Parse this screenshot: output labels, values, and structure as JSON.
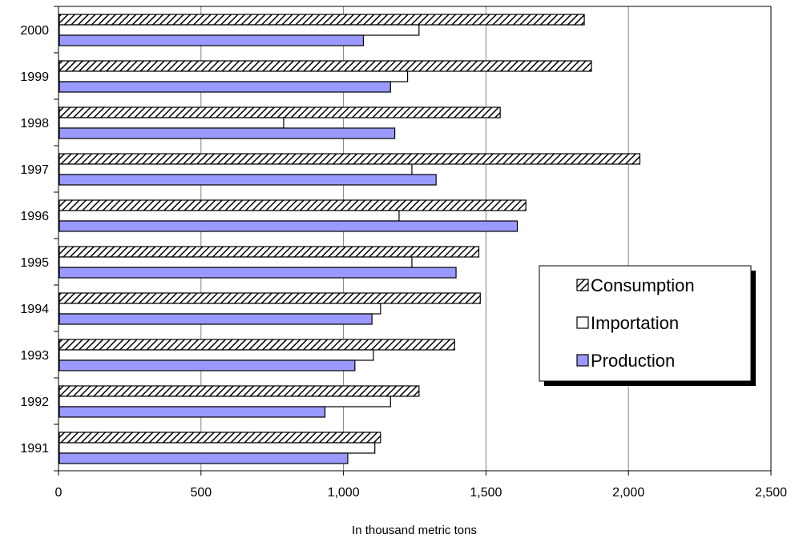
{
  "chart_data": {
    "type": "bar",
    "orientation": "horizontal",
    "title": "",
    "xlabel": "In thousand metric tons",
    "ylabel": "",
    "xlim": [
      0,
      2500
    ],
    "xticks": [
      0,
      500,
      1000,
      1500,
      2000,
      2500
    ],
    "xtick_labels": [
      "0",
      "500",
      "1,000",
      "1,500",
      "2,000",
      "2,500"
    ],
    "grid": "vertical",
    "legend_position": "right",
    "categories": [
      "2000",
      "1999",
      "1998",
      "1997",
      "1996",
      "1995",
      "1994",
      "1993",
      "1992",
      "1991"
    ],
    "series": [
      {
        "name": "Consumption",
        "fill": "hatch",
        "color": "#000000",
        "values": [
          1845,
          1870,
          1550,
          2040,
          1640,
          1475,
          1480,
          1390,
          1265,
          1130
        ]
      },
      {
        "name": "Importation",
        "fill": "white",
        "color": "#ffffff",
        "values": [
          1265,
          1225,
          790,
          1240,
          1195,
          1240,
          1130,
          1105,
          1165,
          1110
        ]
      },
      {
        "name": "Production",
        "fill": "solid",
        "color": "#9999ff",
        "values": [
          1070,
          1165,
          1180,
          1325,
          1610,
          1395,
          1100,
          1040,
          935,
          1015
        ]
      }
    ]
  }
}
